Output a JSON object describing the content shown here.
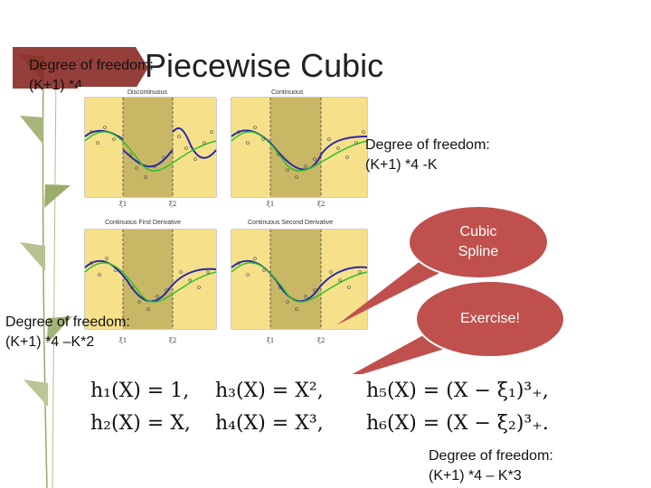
{
  "slide": {
    "title": "Piecewise Cubic",
    "dof_top": [
      "Degree of freedom:",
      "(K+1) *4"
    ],
    "dof_right": [
      "Degree of freedom:",
      "(K+1) *4 -K"
    ],
    "dof_left": [
      "Degree of freedom:",
      "(K+1) *4 –K*2"
    ],
    "dof_bottom": [
      "Degree of freedom:",
      "(K+1) *4 – K*3"
    ],
    "callout_spline": [
      "Cubic",
      "Spline"
    ],
    "callout_exercise": "Exercise!",
    "panels": [
      {
        "title": "Discontinuous"
      },
      {
        "title": "Continuous"
      },
      {
        "title": "Continuous First Derivative"
      },
      {
        "title": "Continuous Second Derivative"
      }
    ],
    "knot_labels": [
      "ξ1",
      "ξ2"
    ],
    "formulas": {
      "h1": "h₁(X) = 1,",
      "h3": "h₃(X) = X²,",
      "h5": "h₅(X) = (X − ξ₁)³₊,",
      "h2": "h₂(X) = X,",
      "h4": "h₄(X) = X³,",
      "h6": "h₆(X) = (X − ξ₂)³₊."
    },
    "colors": {
      "accent": "#c0504d",
      "outer_region": "#f7e08a",
      "middle_region": "#c8b866",
      "fit_blue": "#2a2aa8",
      "true_green": "#2fbf2f",
      "deco_green": "#8aa05a"
    }
  }
}
